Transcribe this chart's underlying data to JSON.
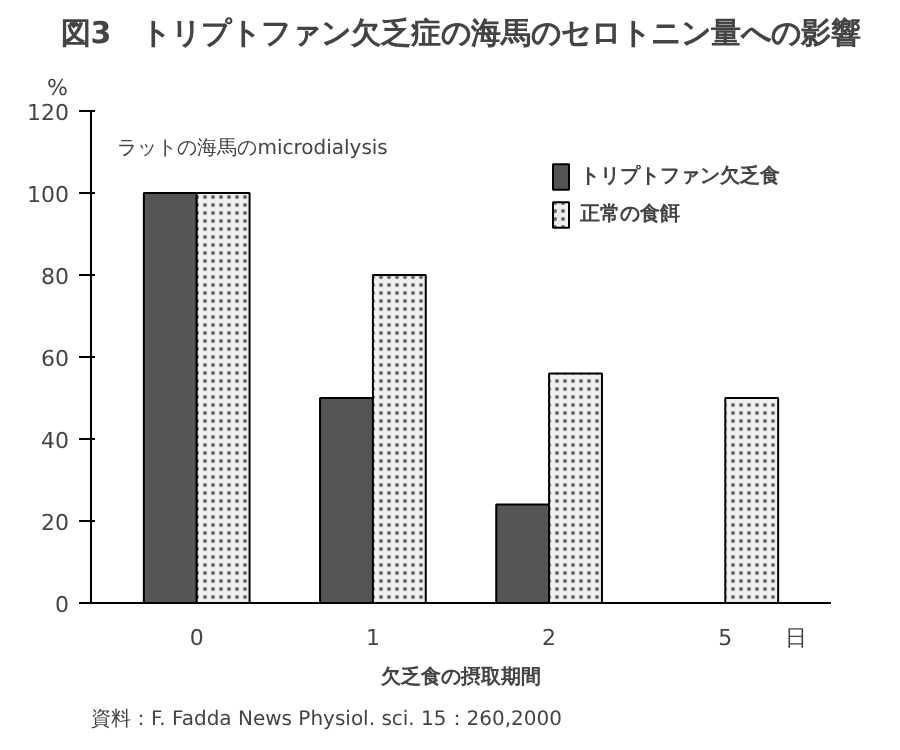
{
  "chart_data": {
    "type": "bar",
    "title": "図3　トリプトファン欠乏症の海馬のセロトニン量への影響",
    "ylabel": "%",
    "xlabel": "欠乏食の摂取期間",
    "categories": [
      "0",
      "1",
      "2",
      "5"
    ],
    "series": [
      {
        "name": "トリプトファン欠乏食",
        "color": "#555555",
        "values": [
          100,
          50,
          24,
          null
        ]
      },
      {
        "name": "正常の食餌",
        "color": "#eeeeee",
        "values": [
          100,
          80,
          56,
          50
        ]
      }
    ],
    "ylim": [
      0,
      120
    ],
    "yticks": [
      0,
      20,
      40,
      60,
      80,
      100,
      120
    ],
    "grid": false,
    "legend": "top right",
    "annotations": [
      "ラットの海馬のmicrodialysis",
      "日",
      "資料：F. Fadda News Physiol. sci.  15：260,2000"
    ]
  }
}
